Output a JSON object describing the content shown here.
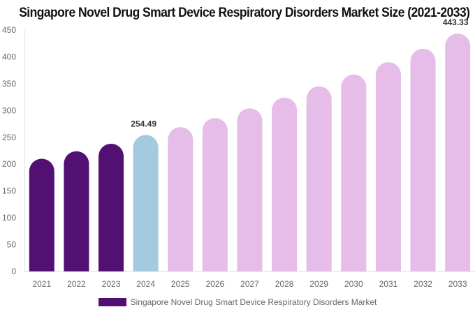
{
  "chart_data": {
    "type": "bar",
    "title": "Singapore Novel Drug Smart Device Respiratory Disorders Market Size (2021-2033)",
    "categories": [
      "2021",
      "2022",
      "2023",
      "2024",
      "2025",
      "2026",
      "2027",
      "2028",
      "2029",
      "2030",
      "2031",
      "2032",
      "2033"
    ],
    "series": [
      {
        "name": "Singapore Novel Drug Smart Device Respiratory Disorders Market",
        "values": [
          210,
          224,
          238,
          254.49,
          269,
          286,
          304,
          324,
          345,
          367,
          390,
          415,
          443.33
        ]
      }
    ],
    "data_labels": {
      "3": "254.49",
      "12": "443.33"
    },
    "ylim": [
      0,
      450
    ],
    "yticks": [
      0,
      50,
      100,
      150,
      200,
      250,
      300,
      350,
      400,
      450
    ],
    "colors": {
      "historical": "#531073",
      "base_year": "#a3cadf",
      "forecast": "#e6bce9"
    },
    "legend_position": "bottom",
    "grid": false
  }
}
